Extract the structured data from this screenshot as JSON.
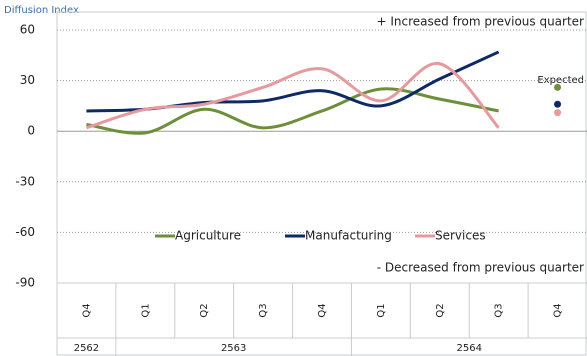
{
  "chart_data": {
    "type": "line",
    "y_label": "Diffusion Index",
    "annotations": {
      "top": "+ Increased from previous quarter",
      "bottom": "- Decreased from previous quarter",
      "expected": "Expected"
    },
    "category_groups": [
      {
        "label": "2562",
        "categories": [
          "Q4"
        ]
      },
      {
        "label": "2563",
        "categories": [
          "Q1",
          "Q2",
          "Q3",
          "Q4"
        ]
      },
      {
        "label": "2564",
        "categories": [
          "Q1",
          "Q2",
          "Q3",
          "Q4"
        ]
      }
    ],
    "series": [
      {
        "name": "Agriculture",
        "color": "#6d8f3b",
        "values": [
          4,
          -1,
          13,
          2,
          12,
          25,
          19,
          12,
          null
        ],
        "expected": 26
      },
      {
        "name": "Manufacturing",
        "color": "#0e2a66",
        "values": [
          12,
          13,
          17,
          18,
          24,
          15,
          31,
          47,
          null
        ],
        "expected": 16
      },
      {
        "name": "Services",
        "color": "#e69a9e",
        "values": [
          2,
          13,
          16,
          26,
          37,
          18,
          40,
          2,
          null
        ],
        "expected": 11
      }
    ],
    "ylim": [
      -90,
      60
    ],
    "yticks": [
      60,
      30,
      0,
      -30,
      -60,
      -90
    ],
    "grid": true
  }
}
